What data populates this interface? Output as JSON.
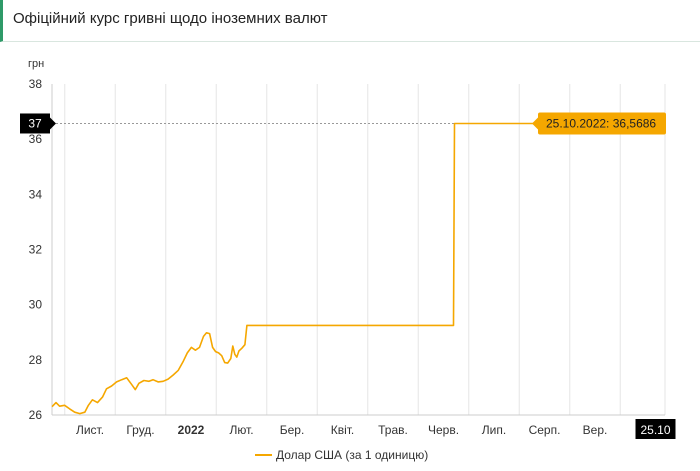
{
  "header": {
    "title": "Офіційний курс гривні щодо іноземних валют",
    "accent_color": "#2e9a68"
  },
  "chart_data": {
    "type": "line",
    "title": "",
    "ylabel": "грн",
    "xlabel": "",
    "ylim": [
      26,
      38
    ],
    "yticks": [
      26,
      28,
      30,
      32,
      34,
      36,
      38
    ],
    "grid": "vertical",
    "legend_position": "bottom-center",
    "x_categories": [
      "Лист.",
      "Груд.",
      "2022",
      "Лют.",
      "Бер.",
      "Квіт.",
      "Трав.",
      "Черв.",
      "Лип.",
      "Серп.",
      "Вер.",
      "25.10"
    ],
    "x_category_bold": [
      false,
      false,
      true,
      false,
      false,
      false,
      false,
      false,
      false,
      false,
      false,
      false
    ],
    "highlight_x_label": "25.10",
    "crosshair_y_label": "37",
    "tooltip": "25.10.2022: 36,5686",
    "series": [
      {
        "name": "Долар США (за 1 одиницю)",
        "color": "#f5a700",
        "points": [
          [
            0.0,
            26.3
          ],
          [
            0.08,
            26.45
          ],
          [
            0.15,
            26.32
          ],
          [
            0.25,
            26.35
          ],
          [
            0.35,
            26.22
          ],
          [
            0.45,
            26.1
          ],
          [
            0.55,
            26.05
          ],
          [
            0.65,
            26.1
          ],
          [
            0.72,
            26.35
          ],
          [
            0.8,
            26.55
          ],
          [
            0.9,
            26.45
          ],
          [
            1.0,
            26.65
          ],
          [
            1.08,
            26.95
          ],
          [
            1.18,
            27.05
          ],
          [
            1.28,
            27.2
          ],
          [
            1.38,
            27.28
          ],
          [
            1.48,
            27.35
          ],
          [
            1.58,
            27.1
          ],
          [
            1.65,
            26.92
          ],
          [
            1.72,
            27.15
          ],
          [
            1.82,
            27.25
          ],
          [
            1.92,
            27.22
          ],
          [
            2.0,
            27.28
          ],
          [
            2.1,
            27.2
          ],
          [
            2.2,
            27.22
          ],
          [
            2.3,
            27.3
          ],
          [
            2.4,
            27.45
          ],
          [
            2.5,
            27.62
          ],
          [
            2.6,
            27.95
          ],
          [
            2.68,
            28.25
          ],
          [
            2.76,
            28.45
          ],
          [
            2.84,
            28.35
          ],
          [
            2.92,
            28.45
          ],
          [
            3.0,
            28.85
          ],
          [
            3.06,
            28.98
          ],
          [
            3.12,
            28.95
          ],
          [
            3.18,
            28.45
          ],
          [
            3.24,
            28.3
          ],
          [
            3.3,
            28.25
          ],
          [
            3.36,
            28.15
          ],
          [
            3.42,
            27.9
          ],
          [
            3.48,
            27.88
          ],
          [
            3.54,
            28.05
          ],
          [
            3.58,
            28.5
          ],
          [
            3.62,
            28.2
          ],
          [
            3.66,
            28.1
          ],
          [
            3.7,
            28.32
          ],
          [
            3.76,
            28.42
          ],
          [
            3.82,
            28.55
          ],
          [
            3.86,
            29.25
          ],
          [
            4.0,
            29.25
          ],
          [
            5.0,
            29.25
          ],
          [
            6.0,
            29.25
          ],
          [
            7.0,
            29.25
          ],
          [
            7.9,
            29.25
          ],
          [
            7.95,
            29.25
          ],
          [
            7.97,
            36.5686
          ],
          [
            8.0,
            36.5686
          ],
          [
            9.0,
            36.5686
          ],
          [
            10.0,
            36.5686
          ],
          [
            11.0,
            36.5686
          ],
          [
            11.18,
            36.5686
          ]
        ]
      }
    ]
  }
}
